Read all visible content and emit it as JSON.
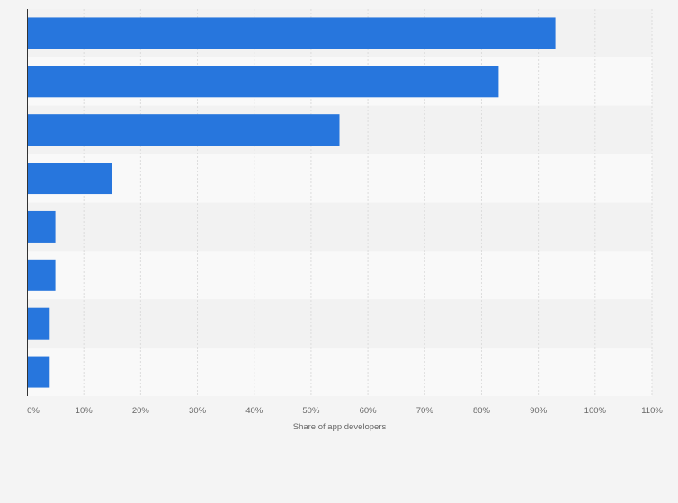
{
  "chart_data": {
    "type": "bar",
    "orientation": "horizontal",
    "title": "",
    "xlabel": "Share of app developers",
    "ylabel": "",
    "categories": [
      "",
      "",
      "",
      "",
      "",
      "",
      "",
      ""
    ],
    "values": [
      93,
      83,
      55,
      15,
      5,
      5,
      4,
      4
    ],
    "unit": "%",
    "xlim": [
      0,
      110
    ],
    "x_ticks": [
      0,
      10,
      20,
      30,
      40,
      50,
      60,
      70,
      80,
      90,
      100,
      110
    ],
    "x_tick_labels": [
      "0%",
      "10%",
      "20%",
      "30%",
      "40%",
      "50%",
      "60%",
      "70%",
      "80%",
      "90%",
      "100%",
      "110%"
    ],
    "grid": true,
    "colors": {
      "bar": "#2776dd",
      "band_dark": "#f2f2f2",
      "band_light": "#f9f9f9",
      "grid": "#dcdcdc",
      "axis": "#333333",
      "background": "#f4f4f4"
    }
  }
}
